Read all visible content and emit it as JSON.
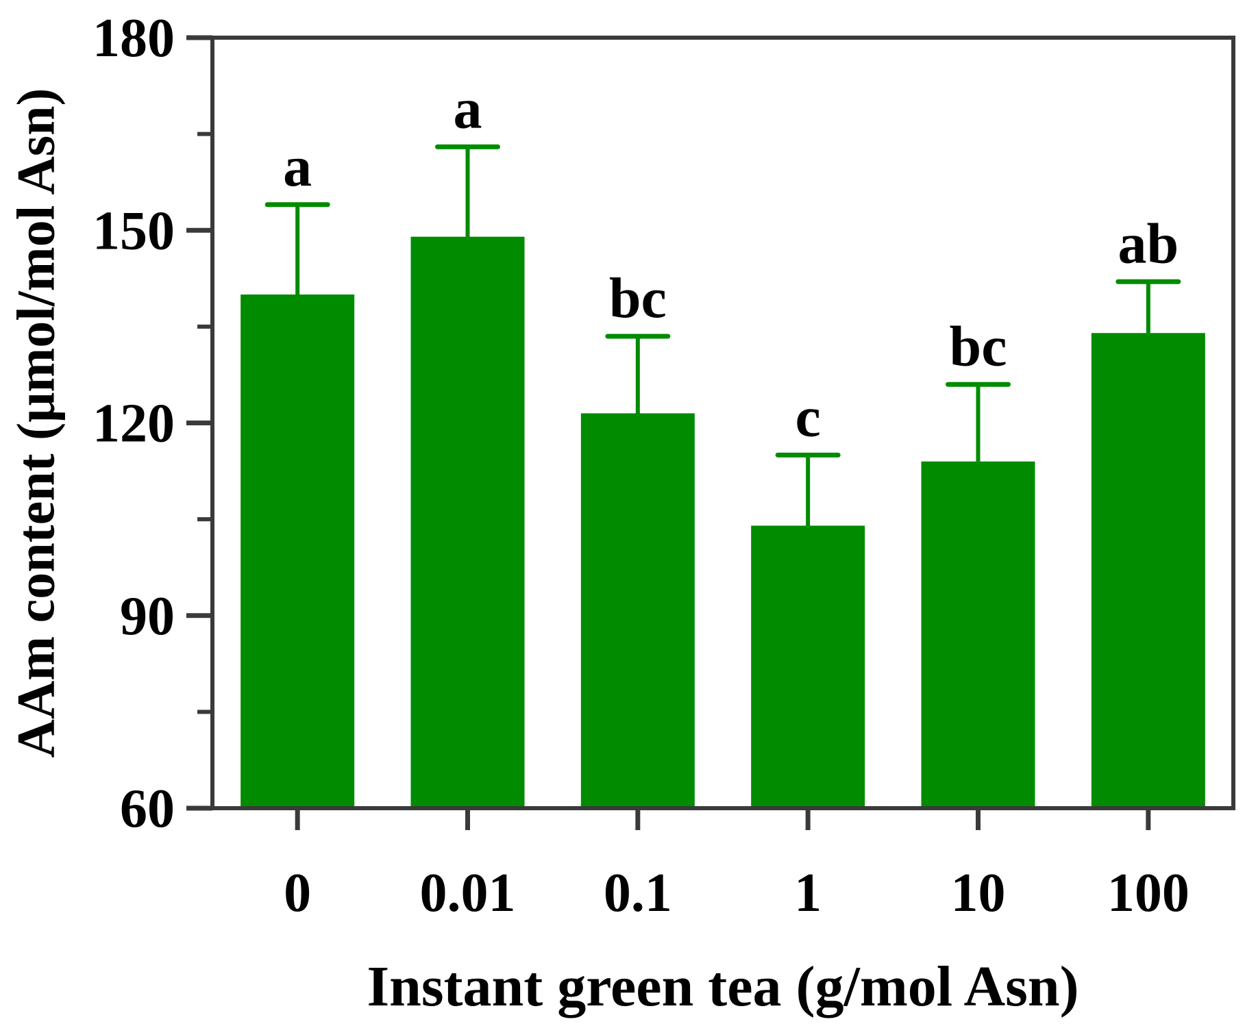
{
  "chart_data": {
    "type": "bar",
    "title": "",
    "xlabel": "Instant green tea (g/mol Asn)",
    "ylabel": "AAm content (μmol/mol Asn)",
    "categories": [
      "0",
      "0.01",
      "0.1",
      "1",
      "10",
      "100"
    ],
    "values": [
      140,
      149,
      121.5,
      104,
      114,
      134
    ],
    "error_upper": [
      14,
      14,
      12,
      11,
      12,
      8
    ],
    "significance_labels": [
      "a",
      "a",
      "bc",
      "c",
      "bc",
      "ab"
    ],
    "ylim": [
      60,
      180
    ],
    "y_major_ticks": [
      60,
      90,
      120,
      150,
      180
    ],
    "y_minor_ticks": [
      75,
      105,
      135,
      165
    ],
    "legend": "none",
    "grid": false,
    "colors": {
      "bar": "#008b00",
      "axis": "#3a3a3a"
    }
  }
}
